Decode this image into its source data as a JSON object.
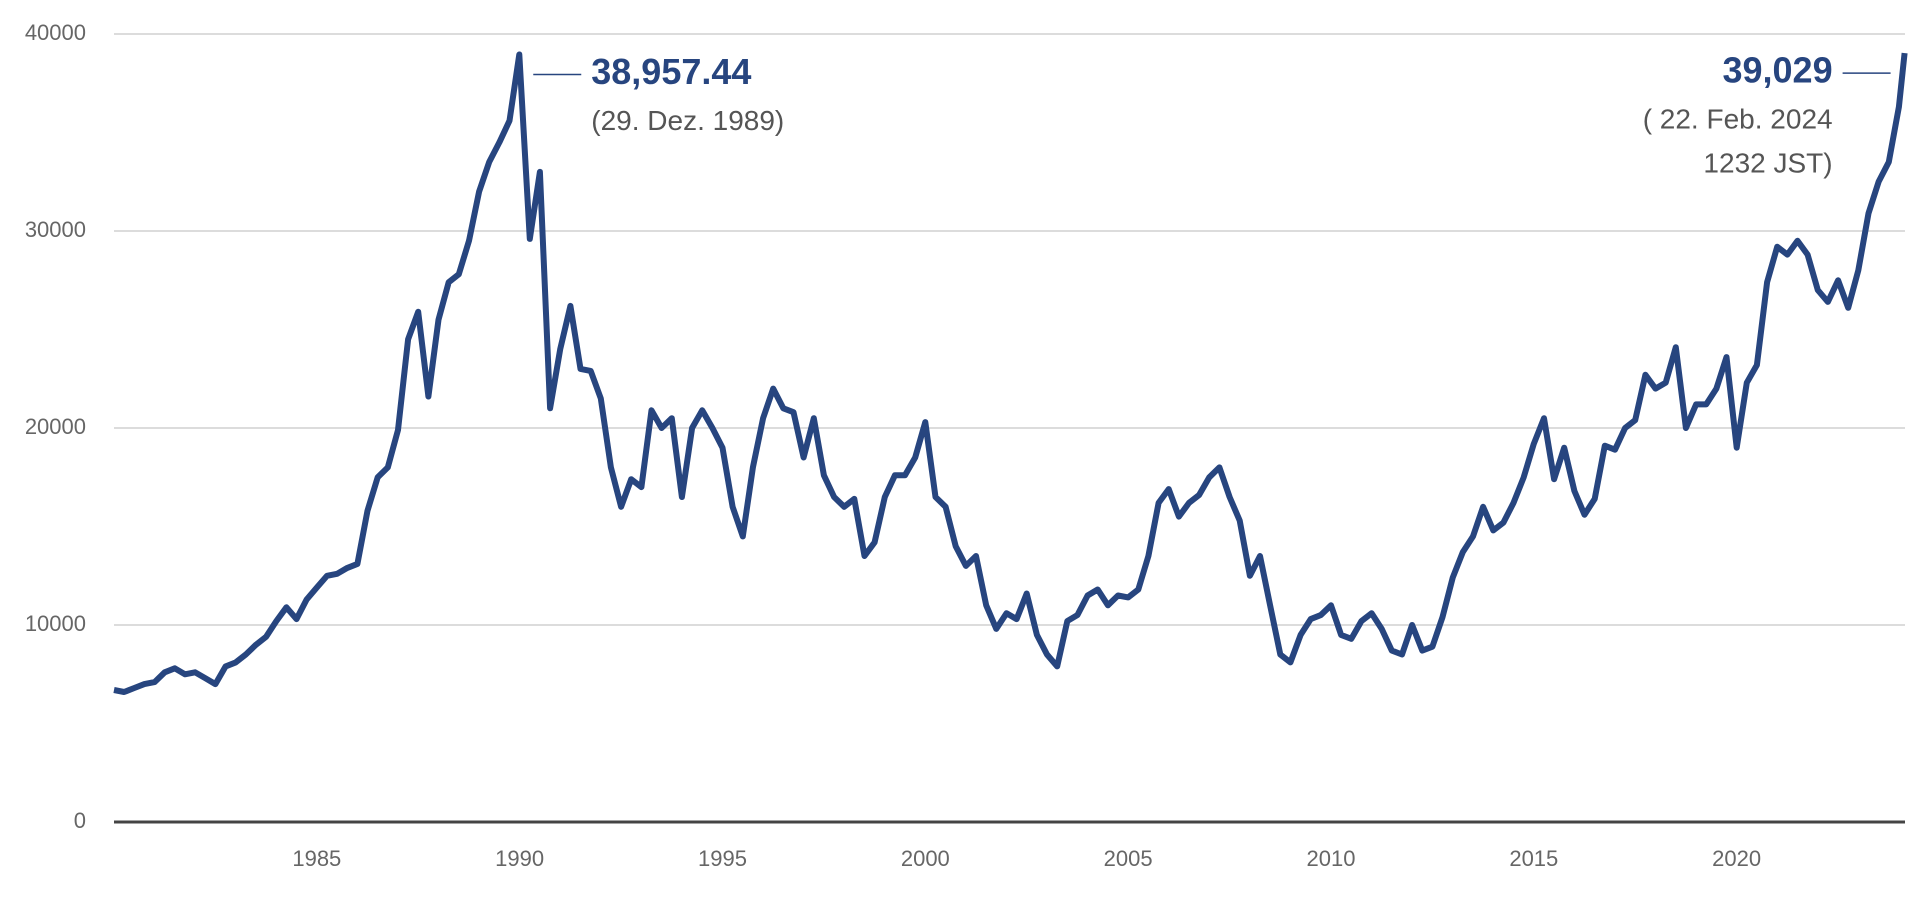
{
  "chart_data": {
    "type": "line",
    "x": [
      1980,
      1980.25,
      1980.5,
      1980.75,
      1981,
      1981.25,
      1981.5,
      1981.75,
      1982,
      1982.25,
      1982.5,
      1982.75,
      1983,
      1983.25,
      1983.5,
      1983.75,
      1984,
      1984.25,
      1984.5,
      1984.75,
      1985,
      1985.25,
      1985.5,
      1985.75,
      1986,
      1986.25,
      1986.5,
      1986.75,
      1987,
      1987.25,
      1987.5,
      1987.75,
      1988,
      1988.25,
      1988.5,
      1988.75,
      1989,
      1989.25,
      1989.5,
      1989.75,
      1989.99,
      1990.25,
      1990.5,
      1990.75,
      1991,
      1991.25,
      1991.5,
      1991.75,
      1992,
      1992.25,
      1992.5,
      1992.75,
      1993,
      1993.25,
      1993.5,
      1993.75,
      1994,
      1994.25,
      1994.5,
      1994.75,
      1995,
      1995.25,
      1995.5,
      1995.75,
      1996,
      1996.25,
      1996.5,
      1996.75,
      1997,
      1997.25,
      1997.5,
      1997.75,
      1998,
      1998.25,
      1998.5,
      1998.75,
      1999,
      1999.25,
      1999.5,
      1999.75,
      2000,
      2000.25,
      2000.5,
      2000.75,
      2001,
      2001.25,
      2001.5,
      2001.75,
      2002,
      2002.25,
      2002.5,
      2002.75,
      2003,
      2003.25,
      2003.5,
      2003.75,
      2004,
      2004.25,
      2004.5,
      2004.75,
      2005,
      2005.25,
      2005.5,
      2005.75,
      2006,
      2006.25,
      2006.5,
      2006.75,
      2007,
      2007.25,
      2007.5,
      2007.75,
      2008,
      2008.25,
      2008.5,
      2008.75,
      2009,
      2009.25,
      2009.5,
      2009.75,
      2010,
      2010.25,
      2010.5,
      2010.75,
      2011,
      2011.25,
      2011.5,
      2011.75,
      2012,
      2012.25,
      2012.5,
      2012.75,
      2013,
      2013.25,
      2013.5,
      2013.75,
      2014,
      2014.25,
      2014.5,
      2014.75,
      2015,
      2015.25,
      2015.5,
      2015.75,
      2016,
      2016.25,
      2016.5,
      2016.75,
      2017,
      2017.25,
      2017.5,
      2017.75,
      2018,
      2018.25,
      2018.5,
      2018.75,
      2019,
      2019.25,
      2019.5,
      2019.75,
      2020,
      2020.25,
      2020.5,
      2020.75,
      2021,
      2021.25,
      2021.5,
      2021.75,
      2022,
      2022.25,
      2022.5,
      2022.75,
      2023,
      2023.25,
      2023.5,
      2023.75,
      2024,
      2024.14
    ],
    "series": [
      {
        "color": "#27457f",
        "values": [
          6700,
          6600,
          6800,
          7000,
          7100,
          7600,
          7800,
          7500,
          7600,
          7300,
          7000,
          7900,
          8100,
          8500,
          9000,
          9400,
          10200,
          10900,
          10300,
          11300,
          11900,
          12500,
          12600,
          12900,
          13100,
          15800,
          17500,
          18000,
          19900,
          24500,
          25900,
          21600,
          25500,
          27400,
          27800,
          29500,
          32000,
          33500,
          34500,
          35600,
          38957.44,
          29600,
          33000,
          21000,
          24000,
          26200,
          23000,
          22900,
          21500,
          18000,
          16000,
          17400,
          17000,
          20900,
          20000,
          20500,
          16500,
          20000,
          20900,
          20000,
          19000,
          16000,
          14500,
          18000,
          20500,
          22000,
          21000,
          20800,
          18500,
          20500,
          17600,
          16500,
          16000,
          16400,
          13500,
          14200,
          16500,
          17600,
          17600,
          18500,
          20300,
          16500,
          16000,
          14000,
          13000,
          13500,
          11000,
          9800,
          10600,
          10300,
          11600,
          9500,
          8500,
          7900,
          10200,
          10500,
          11500,
          11800,
          11000,
          11500,
          11400,
          11800,
          13500,
          16200,
          16900,
          15500,
          16200,
          16600,
          17500,
          18000,
          16500,
          15300,
          12500,
          13500,
          11000,
          8500,
          8100,
          9500,
          10300,
          10500,
          11000,
          9500,
          9300,
          10200,
          10600,
          9800,
          8700,
          8500,
          10000,
          8700,
          8900,
          10400,
          12400,
          13700,
          14500,
          16000,
          14800,
          15200,
          16200,
          17500,
          19200,
          20500,
          17400,
          19000,
          16800,
          15600,
          16400,
          19100,
          18900,
          20000,
          20400,
          22700,
          22000,
          22300,
          24100,
          20000,
          21200,
          21200,
          22000,
          23600,
          19000,
          22300,
          23200,
          27400,
          29200,
          28800,
          29500,
          28800,
          27000,
          26400,
          27500,
          26100,
          28000,
          30900,
          32500,
          33500,
          36300,
          39029
        ]
      }
    ],
    "xlim": [
      1980,
      2024.15
    ],
    "xticks": [
      1985,
      1990,
      1995,
      2000,
      2005,
      2010,
      2015,
      2020
    ],
    "ylim": [
      0,
      40000
    ],
    "yticks": [
      0,
      10000,
      20000,
      30000,
      40000
    ],
    "grid": true,
    "annotations": [
      {
        "x": 1989.99,
        "y": 38957.44,
        "label": "38,957.44",
        "note": [
          "(29. Dez. 1989)"
        ]
      },
      {
        "x": 2024.14,
        "y": 39029,
        "label": "39,029",
        "note": [
          "( 22. Feb. 2024",
          "1232 JST)"
        ]
      }
    ]
  }
}
